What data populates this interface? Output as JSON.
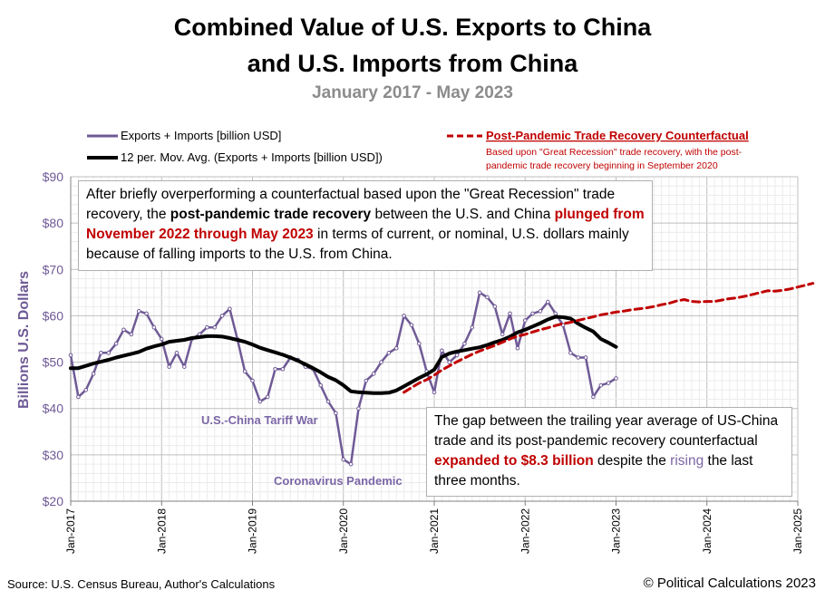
{
  "title_line1": "Combined Value of U.S. Exports to China",
  "title_line2": "and U.S. Imports from China",
  "subtitle": "January 2017 - May 2023",
  "legend": {
    "series1": "Exports + Imports [billion USD]",
    "series2": "12 per. Mov. Avg. (Exports + Imports [billion USD])",
    "counterfactual_title": "Post-Pandemic Trade Recovery Counterfactual",
    "counterfactual_note1": "Based upon \"Great Recession\" trade recovery, with the post-",
    "counterfactual_note2": "pandemic trade recovery beginning in September  2020"
  },
  "annotation_top": {
    "part1": "After briefly overperforming a counterfactual based upon the \"Great Recession\" trade recovery, the ",
    "bold": "post-pandemic trade recovery",
    "part2": " between the U.S. and China ",
    "red": "plunged from November 2022 through May 2023",
    "part3": " in terms of current, or nominal, U.S. dollars mainly because of falling imports to the U.S. from China."
  },
  "annotation_bottom": {
    "part1": "The gap between the trailing year average of US-China trade and its post-pandemic recovery counterfactual ",
    "red": "expanded to $8.3 billion",
    "part2": " despite the ",
    "purple": "rising",
    "part3": " the last three months."
  },
  "labels": {
    "tariff_war": "U.S.-China Tariff War",
    "pandemic": "Coronavirus Pandemic"
  },
  "source": "Source: U.S. Census Bureau, Author's Calculations",
  "copyright": "© Political Calculations 2023",
  "colors": {
    "series": "#6f5a96",
    "avg": "#000000",
    "counterfactual": "#c00000",
    "label": "#7b66a6"
  },
  "chart_data": {
    "type": "line",
    "ylabel": "Billions U.S. Dollars",
    "ylim": [
      20,
      90
    ],
    "yticks": [
      "$20",
      "$30",
      "$40",
      "$50",
      "$60",
      "$70",
      "$80",
      "$90"
    ],
    "xlim": [
      "2017-01",
      "2025-01"
    ],
    "xticks": [
      "Jan-2017",
      "Jan-2018",
      "Jan-2019",
      "Jan-2020",
      "Jan-2021",
      "Jan-2022",
      "Jan-2023",
      "Jan-2024",
      "Jan-2025"
    ],
    "grid": true,
    "legend_position": "top",
    "series": [
      {
        "name": "Exports + Imports [billion USD]",
        "start": "2017-01",
        "values": [
          51.5,
          42.5,
          44,
          47.5,
          52,
          52,
          54,
          57,
          56,
          61,
          60.5,
          57.5,
          55,
          49,
          52,
          49,
          55,
          56,
          57.5,
          57.5,
          60,
          61.5,
          55,
          48,
          46,
          41.5,
          42.5,
          48.5,
          48.5,
          51,
          50.5,
          49,
          48.5,
          45,
          41.5,
          39,
          29,
          28,
          40,
          46,
          47.5,
          50,
          52,
          53,
          60,
          58,
          54,
          48,
          43.5,
          52.5,
          50,
          51.5,
          54,
          57.5,
          65,
          64,
          62,
          56,
          60.5,
          53,
          59,
          60.5,
          61,
          63,
          60.5,
          58,
          52,
          51,
          51,
          42.5,
          45,
          45.5,
          46.5
        ]
      },
      {
        "name": "12 per. Mov. Avg. (Exports + Imports [billion USD])",
        "start": "2017-01",
        "values": [
          48.7,
          48.7,
          49.2,
          49.7,
          50.1,
          50.5,
          51,
          51.4,
          51.8,
          52.2,
          52.9,
          53.4,
          53.8,
          54.4,
          54.6,
          54.8,
          55.2,
          55.4,
          55.6,
          55.6,
          55.5,
          55.2,
          54.8,
          54.4,
          53.8,
          53.1,
          52.6,
          52.1,
          51.6,
          51,
          50.3,
          49.5,
          48.7,
          47.8,
          46.8,
          46.1,
          45,
          43.7,
          43.5,
          43.4,
          43.3,
          43.3,
          43.4,
          43.9,
          44.8,
          45.7,
          46.6,
          47.4,
          48.4,
          51.1,
          51.9,
          52.3,
          52.6,
          52.9,
          53.2,
          53.7,
          54.3,
          54.8,
          55.5,
          56.4,
          57,
          57.7,
          58.4,
          59.2,
          59.8,
          59.7,
          59.4,
          58.3,
          57.4,
          56.6,
          55,
          54.2,
          53.3
        ]
      },
      {
        "name": "Post-Pandemic Trade Recovery Counterfactual",
        "start": "2020-09",
        "dashed": true,
        "values": [
          43.5,
          44.5,
          45.5,
          46.2,
          47.2,
          48.3,
          49.2,
          50.1,
          50.9,
          51.7,
          52.4,
          53,
          53.6,
          54.3,
          55,
          55.6,
          56,
          56.5,
          57,
          57.4,
          57.9,
          58.3,
          58.6,
          59,
          59.4,
          59.8,
          60.2,
          60.5,
          60.8,
          61,
          61.3,
          61.5,
          61.7,
          62,
          62.4,
          62.7,
          63.2,
          63.5,
          63.1,
          63,
          63.1,
          63.1,
          63.4,
          63.7,
          63.9,
          64.2,
          64.6,
          65,
          65.4,
          65.3,
          65.5,
          65.8,
          66.2,
          66.6,
          67
        ]
      }
    ]
  }
}
